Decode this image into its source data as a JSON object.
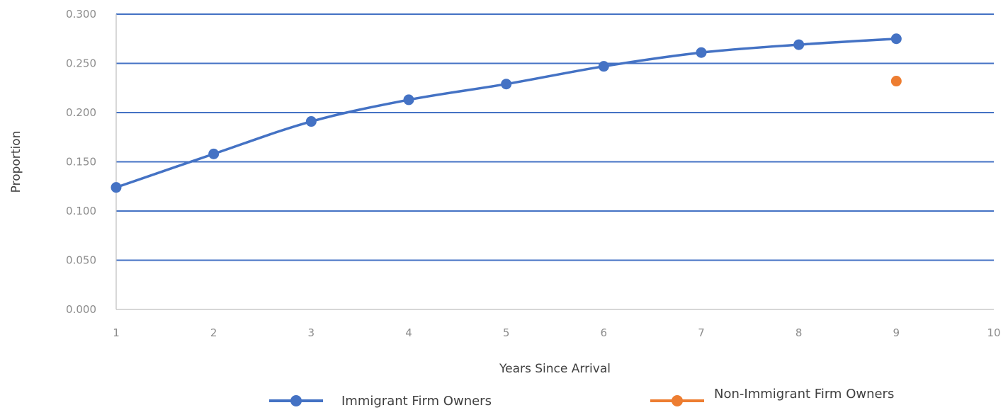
{
  "chart_data": {
    "type": "line",
    "xlabel": "Years Since Arrival",
    "ylabel": "Proportion",
    "xlim": [
      1,
      10
    ],
    "ylim": [
      0,
      0.3
    ],
    "x_ticks": [
      "1",
      "2",
      "3",
      "4",
      "5",
      "6",
      "7",
      "8",
      "9",
      "10"
    ],
    "y_ticks": [
      "0.000",
      "0.050",
      "0.100",
      "0.150",
      "0.200",
      "0.250",
      "0.300"
    ],
    "grid": true,
    "legend_position": "bottom",
    "series": [
      {
        "name": "Immigrant Firm Owners",
        "color": "#4472c4",
        "style": "line-markers",
        "x": [
          1,
          2,
          3,
          4,
          5,
          6,
          7,
          8,
          9
        ],
        "y": [
          0.124,
          0.158,
          0.191,
          0.213,
          0.229,
          0.247,
          0.261,
          0.269,
          0.275
        ]
      },
      {
        "name": "Non-Immigrant Firm Owners",
        "color": "#ed7d31",
        "style": "markers",
        "x": [
          9
        ],
        "y": [
          0.232
        ]
      }
    ]
  }
}
